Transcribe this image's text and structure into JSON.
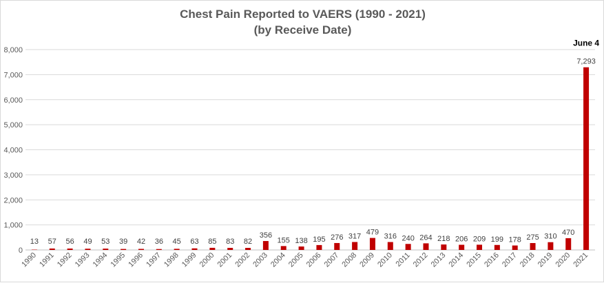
{
  "chart_data": {
    "type": "bar",
    "title": "Chest Pain Reported to VAERS (1990 - 2021)",
    "subtitle": "(by Receive Date)",
    "xlabel": "",
    "ylabel": "",
    "ylim": [
      0,
      8000
    ],
    "yticks": [
      "0",
      "1,000",
      "2,000",
      "3,000",
      "4,000",
      "5,000",
      "6,000",
      "7,000",
      "8,000"
    ],
    "grid": true,
    "legend": "none",
    "bar_color": "#c00000",
    "categories": [
      "1990",
      "1991",
      "1992",
      "1993",
      "1994",
      "1995",
      "1996",
      "1997",
      "1998",
      "1999",
      "2000",
      "2001",
      "2002",
      "2003",
      "2004",
      "2005",
      "2006",
      "2007",
      "2008",
      "2009",
      "2010",
      "2011",
      "2012",
      "2013",
      "2014",
      "2015",
      "2016",
      "2017",
      "2018",
      "2019",
      "2020",
      "2021"
    ],
    "values": [
      13,
      57,
      56,
      49,
      53,
      39,
      42,
      36,
      45,
      63,
      85,
      83,
      82,
      356,
      155,
      138,
      195,
      276,
      317,
      479,
      316,
      240,
      264,
      218,
      206,
      209,
      199,
      178,
      275,
      310,
      470,
      7293
    ],
    "data_labels": [
      "13",
      "57",
      "56",
      "49",
      "53",
      "39",
      "42",
      "36",
      "45",
      "63",
      "85",
      "83",
      "82",
      "356",
      "155",
      "138",
      "195",
      "276",
      "317",
      "479",
      "316",
      "240",
      "264",
      "218",
      "206",
      "209",
      "199",
      "178",
      "275",
      "310",
      "470",
      "7,293"
    ],
    "annotation": "June 4"
  }
}
